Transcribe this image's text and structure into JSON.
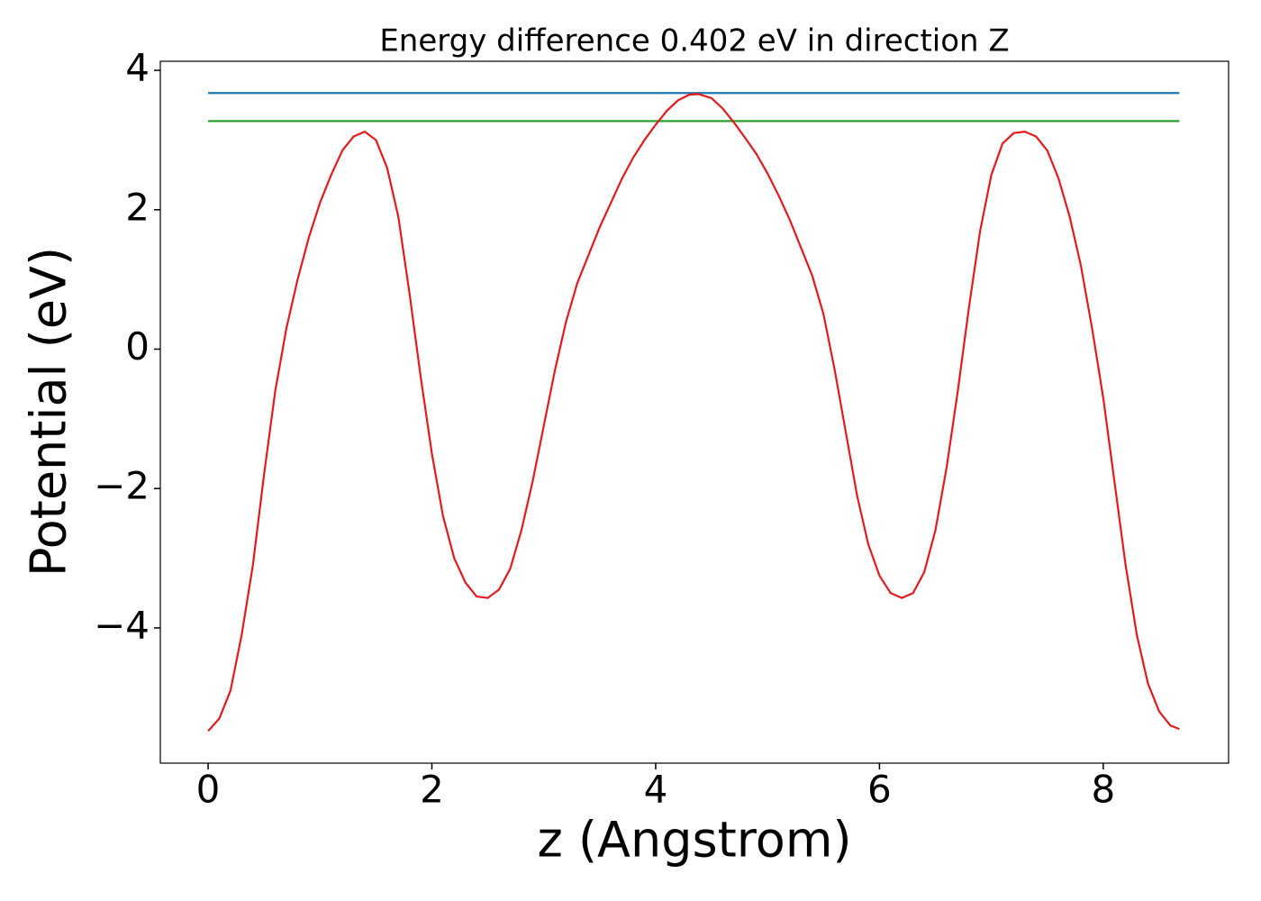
{
  "chart_data": {
    "type": "line",
    "title": "Energy difference 0.402 eV in direction Z",
    "x_label": "z (Angstrom)",
    "y_label": "Potential (eV)",
    "xlim": [
      -0.427,
      9.12
    ],
    "ylim": [
      -5.94,
      4.13
    ],
    "xticks": [
      0,
      2,
      4,
      6,
      8
    ],
    "yticks": [
      {
        "value": -4,
        "label": "−4"
      },
      {
        "value": -2,
        "label": "−2"
      },
      0,
      2,
      4
    ],
    "series": [
      {
        "color": "#1f77b4",
        "x": [
          0,
          8.68
        ],
        "values": [
          3.674,
          3.674
        ]
      },
      {
        "color": "#2ca02c",
        "x": [
          0,
          8.68
        ],
        "values": [
          3.272,
          3.272
        ]
      },
      {
        "color": "#e41a1c",
        "x": [
          0,
          0.1,
          0.2,
          0.3,
          0.4,
          0.5,
          0.6,
          0.7,
          0.8,
          0.9,
          1.0,
          1.1,
          1.2,
          1.3,
          1.4,
          1.5,
          1.6,
          1.7,
          1.8,
          1.9,
          2.0,
          2.1,
          2.2,
          2.3,
          2.4,
          2.5,
          2.6,
          2.7,
          2.8,
          2.9,
          3.0,
          3.1,
          3.2,
          3.3,
          3.4,
          3.5,
          3.6,
          3.7,
          3.8,
          3.9,
          4.0,
          4.1,
          4.2,
          4.3,
          4.38,
          4.5,
          4.6,
          4.7,
          4.8,
          4.9,
          5.0,
          5.1,
          5.2,
          5.3,
          5.4,
          5.5,
          5.6,
          5.7,
          5.8,
          5.9,
          6.0,
          6.1,
          6.2,
          6.3,
          6.4,
          6.5,
          6.6,
          6.7,
          6.8,
          6.9,
          7.0,
          7.1,
          7.2,
          7.3,
          7.4,
          7.5,
          7.6,
          7.7,
          7.8,
          7.9,
          8.0,
          8.1,
          8.2,
          8.3,
          8.4,
          8.5,
          8.6,
          8.68
        ],
        "values": [
          -5.48,
          -5.3,
          -4.9,
          -4.1,
          -3.1,
          -1.8,
          -0.6,
          0.3,
          1.0,
          1.6,
          2.1,
          2.5,
          2.85,
          3.05,
          3.12,
          3.0,
          2.6,
          1.9,
          0.8,
          -0.4,
          -1.5,
          -2.4,
          -3.0,
          -3.35,
          -3.55,
          -3.57,
          -3.45,
          -3.15,
          -2.6,
          -1.9,
          -1.1,
          -0.3,
          0.4,
          0.95,
          1.35,
          1.75,
          2.1,
          2.45,
          2.75,
          3.0,
          3.22,
          3.42,
          3.57,
          3.65,
          3.66,
          3.6,
          3.45,
          3.25,
          3.03,
          2.8,
          2.52,
          2.2,
          1.85,
          1.45,
          1.05,
          0.5,
          -0.3,
          -1.2,
          -2.1,
          -2.8,
          -3.25,
          -3.5,
          -3.57,
          -3.5,
          -3.2,
          -2.6,
          -1.7,
          -0.6,
          0.6,
          1.7,
          2.5,
          2.95,
          3.1,
          3.12,
          3.05,
          2.85,
          2.45,
          1.9,
          1.2,
          0.3,
          -0.7,
          -1.9,
          -3.1,
          -4.1,
          -4.8,
          -5.2,
          -5.4,
          -5.45
        ]
      }
    ]
  }
}
